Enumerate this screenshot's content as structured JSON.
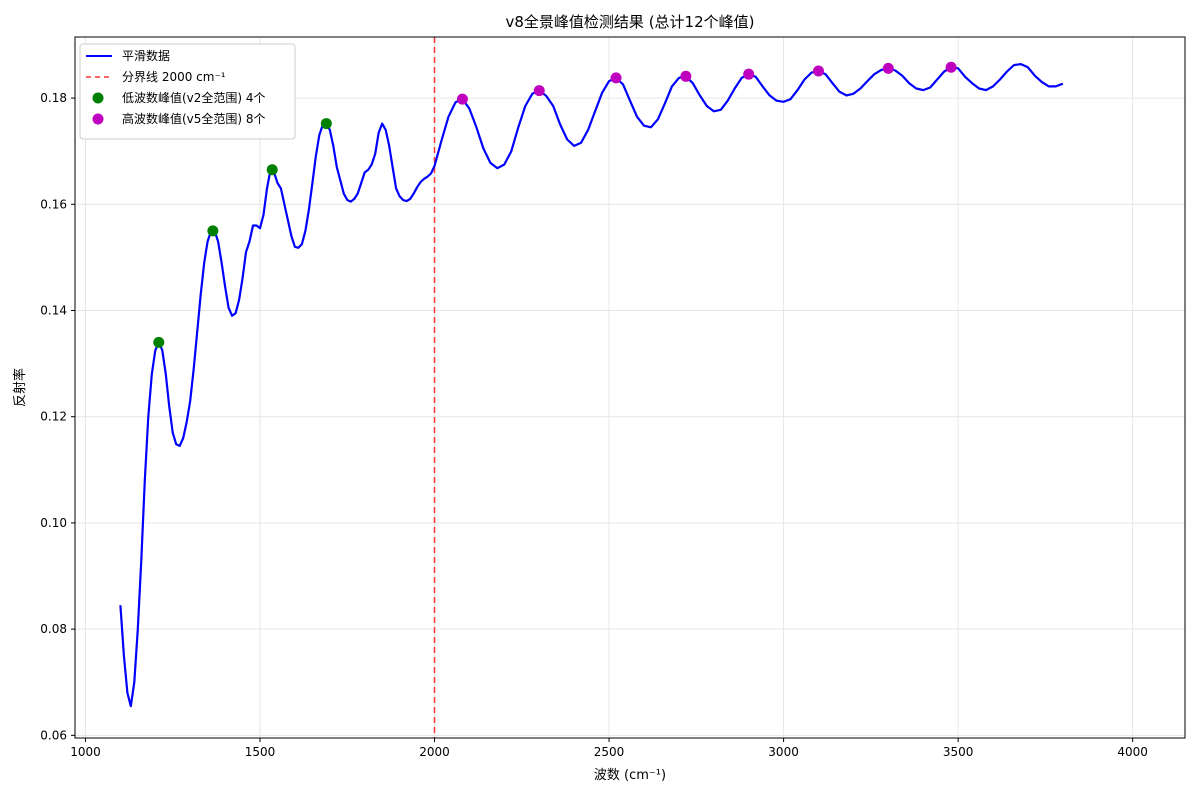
{
  "chart_data": {
    "type": "line",
    "title": "v8全景峰值检测结果 (总计12个峰值)",
    "xlabel": "波数 (cm⁻¹)",
    "ylabel": "反射率",
    "xlim": [
      970,
      4150
    ],
    "ylim": [
      0.0595,
      0.1915
    ],
    "x_ticks": [
      1000,
      1500,
      2000,
      2500,
      3000,
      3500,
      4000
    ],
    "y_ticks": [
      0.06,
      0.08,
      0.1,
      0.12,
      0.14,
      0.16,
      0.18
    ],
    "y_tick_labels": [
      "0.06",
      "0.08",
      "0.10",
      "0.12",
      "0.14",
      "0.16",
      "0.18"
    ],
    "grid": true,
    "legend_position": "top-left",
    "legend": [
      {
        "label": "平滑数据",
        "kind": "line",
        "color": "#0000ff"
      },
      {
        "label": "分界线 2000 cm⁻¹",
        "kind": "dashed",
        "color": "#ff3333"
      },
      {
        "label": "低波数峰值(v2全范围) 4个",
        "kind": "marker",
        "color": "#008000"
      },
      {
        "label": "高波数峰值(v5全范围) 8个",
        "kind": "marker",
        "color": "#bf00bf"
      }
    ],
    "divider_x": 2000,
    "series": [
      {
        "name": "平滑数据",
        "color": "#0000ff",
        "points": [
          [
            1100,
            0.0845
          ],
          [
            1110,
            0.075
          ],
          [
            1120,
            0.068
          ],
          [
            1130,
            0.0655
          ],
          [
            1140,
            0.07
          ],
          [
            1150,
            0.08
          ],
          [
            1160,
            0.093
          ],
          [
            1170,
            0.108
          ],
          [
            1180,
            0.12
          ],
          [
            1190,
            0.128
          ],
          [
            1200,
            0.1325
          ],
          [
            1210,
            0.134
          ],
          [
            1220,
            0.1325
          ],
          [
            1230,
            0.128
          ],
          [
            1240,
            0.122
          ],
          [
            1250,
            0.117
          ],
          [
            1260,
            0.1148
          ],
          [
            1270,
            0.1145
          ],
          [
            1280,
            0.116
          ],
          [
            1290,
            0.119
          ],
          [
            1300,
            0.123
          ],
          [
            1310,
            0.129
          ],
          [
            1320,
            0.136
          ],
          [
            1330,
            0.143
          ],
          [
            1340,
            0.149
          ],
          [
            1350,
            0.153
          ],
          [
            1360,
            0.155
          ],
          [
            1370,
            0.155
          ],
          [
            1380,
            0.153
          ],
          [
            1390,
            0.149
          ],
          [
            1400,
            0.1445
          ],
          [
            1410,
            0.1405
          ],
          [
            1420,
            0.139
          ],
          [
            1430,
            0.1395
          ],
          [
            1440,
            0.142
          ],
          [
            1450,
            0.146
          ],
          [
            1460,
            0.151
          ],
          [
            1470,
            0.153
          ],
          [
            1480,
            0.156
          ],
          [
            1490,
            0.156
          ],
          [
            1500,
            0.1555
          ],
          [
            1510,
            0.158
          ],
          [
            1520,
            0.163
          ],
          [
            1530,
            0.1665
          ],
          [
            1540,
            0.166
          ],
          [
            1550,
            0.164
          ],
          [
            1560,
            0.163
          ],
          [
            1570,
            0.16
          ],
          [
            1580,
            0.157
          ],
          [
            1590,
            0.154
          ],
          [
            1600,
            0.152
          ],
          [
            1610,
            0.1518
          ],
          [
            1620,
            0.1525
          ],
          [
            1630,
            0.155
          ],
          [
            1640,
            0.159
          ],
          [
            1650,
            0.164
          ],
          [
            1660,
            0.169
          ],
          [
            1670,
            0.173
          ],
          [
            1680,
            0.175
          ],
          [
            1690,
            0.1752
          ],
          [
            1700,
            0.174
          ],
          [
            1710,
            0.171
          ],
          [
            1720,
            0.167
          ],
          [
            1730,
            0.1645
          ],
          [
            1740,
            0.162
          ],
          [
            1750,
            0.1608
          ],
          [
            1760,
            0.1605
          ],
          [
            1770,
            0.161
          ],
          [
            1780,
            0.162
          ],
          [
            1790,
            0.164
          ],
          [
            1800,
            0.166
          ],
          [
            1810,
            0.1665
          ],
          [
            1820,
            0.1675
          ],
          [
            1830,
            0.1695
          ],
          [
            1840,
            0.1735
          ],
          [
            1850,
            0.1752
          ],
          [
            1860,
            0.174
          ],
          [
            1870,
            0.171
          ],
          [
            1880,
            0.167
          ],
          [
            1890,
            0.163
          ],
          [
            1900,
            0.1615
          ],
          [
            1910,
            0.1608
          ],
          [
            1920,
            0.1606
          ],
          [
            1930,
            0.161
          ],
          [
            1940,
            0.162
          ],
          [
            1950,
            0.1632
          ],
          [
            1960,
            0.1642
          ],
          [
            1970,
            0.1648
          ],
          [
            1980,
            0.1652
          ],
          [
            1990,
            0.1658
          ],
          [
            2000,
            0.1672
          ],
          [
            2020,
            0.172
          ],
          [
            2040,
            0.1765
          ],
          [
            2060,
            0.1792
          ],
          [
            2080,
            0.1798
          ],
          [
            2100,
            0.178
          ],
          [
            2120,
            0.1745
          ],
          [
            2140,
            0.1705
          ],
          [
            2160,
            0.1678
          ],
          [
            2180,
            0.1668
          ],
          [
            2200,
            0.1675
          ],
          [
            2220,
            0.17
          ],
          [
            2240,
            0.1745
          ],
          [
            2260,
            0.1785
          ],
          [
            2280,
            0.1808
          ],
          [
            2300,
            0.1814
          ],
          [
            2320,
            0.1804
          ],
          [
            2340,
            0.1785
          ],
          [
            2360,
            0.175
          ],
          [
            2380,
            0.1722
          ],
          [
            2400,
            0.171
          ],
          [
            2420,
            0.1716
          ],
          [
            2440,
            0.174
          ],
          [
            2460,
            0.1775
          ],
          [
            2480,
            0.181
          ],
          [
            2500,
            0.1832
          ],
          [
            2520,
            0.1838
          ],
          [
            2540,
            0.1826
          ],
          [
            2560,
            0.1795
          ],
          [
            2580,
            0.1765
          ],
          [
            2600,
            0.1748
          ],
          [
            2620,
            0.1745
          ],
          [
            2640,
            0.176
          ],
          [
            2660,
            0.179
          ],
          [
            2680,
            0.1822
          ],
          [
            2700,
            0.1838
          ],
          [
            2720,
            0.1841
          ],
          [
            2740,
            0.1828
          ],
          [
            2760,
            0.1805
          ],
          [
            2780,
            0.1785
          ],
          [
            2800,
            0.1775
          ],
          [
            2820,
            0.1778
          ],
          [
            2840,
            0.1795
          ],
          [
            2860,
            0.1818
          ],
          [
            2880,
            0.1838
          ],
          [
            2900,
            0.1845
          ],
          [
            2920,
            0.184
          ],
          [
            2940,
            0.1822
          ],
          [
            2960,
            0.1805
          ],
          [
            2980,
            0.1795
          ],
          [
            3000,
            0.1793
          ],
          [
            3020,
            0.1798
          ],
          [
            3040,
            0.1815
          ],
          [
            3060,
            0.1835
          ],
          [
            3080,
            0.1848
          ],
          [
            3100,
            0.1851
          ],
          [
            3120,
            0.1845
          ],
          [
            3140,
            0.1828
          ],
          [
            3160,
            0.1812
          ],
          [
            3180,
            0.1805
          ],
          [
            3200,
            0.1808
          ],
          [
            3220,
            0.1818
          ],
          [
            3240,
            0.1832
          ],
          [
            3260,
            0.1845
          ],
          [
            3280,
            0.1853
          ],
          [
            3300,
            0.1856
          ],
          [
            3320,
            0.1852
          ],
          [
            3340,
            0.1842
          ],
          [
            3360,
            0.1828
          ],
          [
            3380,
            0.1818
          ],
          [
            3400,
            0.1815
          ],
          [
            3420,
            0.182
          ],
          [
            3440,
            0.1835
          ],
          [
            3460,
            0.185
          ],
          [
            3480,
            0.1858
          ],
          [
            3500,
            0.1856
          ],
          [
            3520,
            0.184
          ],
          [
            3540,
            0.1828
          ],
          [
            3560,
            0.1818
          ],
          [
            3580,
            0.1815
          ],
          [
            3600,
            0.1822
          ],
          [
            3620,
            0.1835
          ],
          [
            3640,
            0.185
          ],
          [
            3660,
            0.1862
          ],
          [
            3680,
            0.1864
          ],
          [
            3700,
            0.1858
          ],
          [
            3720,
            0.1842
          ],
          [
            3740,
            0.183
          ],
          [
            3760,
            0.1822
          ],
          [
            3780,
            0.1822
          ],
          [
            3800,
            0.1827
          ]
        ]
      }
    ],
    "peaks_low": {
      "name": "低波数峰值(v2全范围) 4个",
      "color": "#008000",
      "points": [
        [
          1210,
          0.134
        ],
        [
          1365,
          0.155
        ],
        [
          1535,
          0.1665
        ],
        [
          1690,
          0.1752
        ]
      ]
    },
    "peaks_high": {
      "name": "高波数峰值(v5全范围) 8个",
      "color": "#bf00bf",
      "points": [
        [
          2080,
          0.1798
        ],
        [
          2300,
          0.1814
        ],
        [
          2520,
          0.1838
        ],
        [
          2720,
          0.1841
        ],
        [
          2900,
          0.1845
        ],
        [
          3100,
          0.1851
        ],
        [
          3300,
          0.1856
        ],
        [
          3480,
          0.1858
        ]
      ]
    }
  }
}
